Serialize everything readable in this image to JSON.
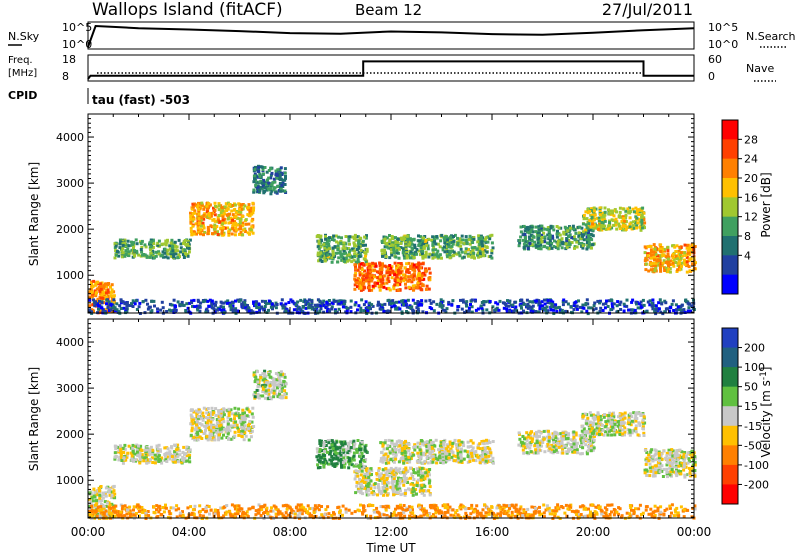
{
  "header": {
    "site": "Wallops Island (fitACF)",
    "beam": "Beam 12",
    "date": "27/Jul/2011"
  },
  "nsky_panel": {
    "left_label": "N.Sky",
    "left_ticks": [
      "10^5",
      "10^0"
    ],
    "right_ticks": [
      "10^5",
      "10^0"
    ],
    "right_label": "N.Search"
  },
  "freq_panel": {
    "left_label_line1": "Freq.",
    "left_label_line2": "[MHz]",
    "left_ticks": [
      "18",
      "8"
    ],
    "right_ticks": [
      "60",
      "0"
    ],
    "right_label": "Nave",
    "cpid_label": "CPID",
    "cpid_value": "tau (fast) -503"
  },
  "power_colorbar": {
    "label": "Power [dB]",
    "ticks": [
      "28",
      "24",
      "20",
      "16",
      "12",
      "8",
      "4"
    ],
    "colors": [
      "#ff0000",
      "#ff4000",
      "#ff8000",
      "#ffc000",
      "#a0c830",
      "#40a060",
      "#207070",
      "#2040a0",
      "#0000ff"
    ]
  },
  "velocity_colorbar": {
    "label": "Velocity [m s^-1]",
    "ticks": [
      "200",
      "100",
      "50",
      "15",
      "-15",
      "-50",
      "-100",
      "-200"
    ],
    "colors": [
      "#2040c0",
      "#206080",
      "#208040",
      "#60c040",
      "#c8c8c8",
      "#ffc000",
      "#ff8000",
      "#ff4000",
      "#ff0000"
    ]
  },
  "chart_data": [
    {
      "type": "line",
      "title": "Wallops Island (fitACF)",
      "xlabel": "",
      "ylabel": "N.Sky",
      "x_hours": [
        0,
        0.3,
        1,
        2,
        4,
        6,
        8,
        10,
        12,
        14,
        16,
        18,
        20,
        22,
        24
      ],
      "series": [
        {
          "values": [
            1,
            100000,
            60000,
            30000,
            15000,
            6000,
            2000,
            1500,
            5000,
            3000,
            1200,
            800,
            2500,
            10000,
            30000
          ]
        }
      ]
    },
    {
      "type": "line",
      "xlabel": "",
      "ylabel": "Freq. [MHz]",
      "ylim": [
        8,
        18
      ],
      "x_hours": [
        0,
        0.1,
        10.9,
        10.9,
        22,
        22,
        24
      ],
      "series": [
        {
          "values": [
            8,
            9.5,
            9.5,
            16,
            16,
            9.5,
            9.5
          ]
        }
      ]
    },
    {
      "type": "heatmap",
      "xlabel": "Time UT",
      "ylabel": "Slant Range [km]",
      "xlim": [
        0,
        24
      ],
      "x_ticks": [
        "00:00",
        "04:00",
        "08:00",
        "12:00",
        "16:00",
        "20:00",
        "00:00"
      ],
      "ylim": [
        180,
        4500
      ],
      "y_ticks": [
        "1000",
        "2000",
        "3000",
        "4000"
      ],
      "quantity": "Power [dB]",
      "regions": [
        {
          "t0": 0,
          "t1": 1,
          "r0": 200,
          "r1": 900,
          "value": 24
        },
        {
          "t0": 1,
          "t1": 4,
          "r0": 1400,
          "r1": 1800,
          "value": 14
        },
        {
          "t0": 4,
          "t1": 6.5,
          "r0": 1900,
          "r1": 2600,
          "value": 22
        },
        {
          "t0": 6.5,
          "t1": 7.8,
          "r0": 2800,
          "r1": 3400,
          "value": 10
        },
        {
          "t0": 9,
          "t1": 11,
          "r0": 1300,
          "r1": 1900,
          "value": 14
        },
        {
          "t0": 10.5,
          "t1": 13.5,
          "r0": 700,
          "r1": 1300,
          "value": 26
        },
        {
          "t0": 11.5,
          "t1": 16,
          "r0": 1400,
          "r1": 1900,
          "value": 14
        },
        {
          "t0": 17,
          "t1": 20,
          "r0": 1600,
          "r1": 2100,
          "value": 12
        },
        {
          "t0": 19.5,
          "t1": 22,
          "r0": 2000,
          "r1": 2500,
          "value": 18
        },
        {
          "t0": 22,
          "t1": 24,
          "r0": 1100,
          "r1": 1700,
          "value": 22
        },
        {
          "t0": 0,
          "t1": 24,
          "r0": 200,
          "r1": 500,
          "value": 6
        }
      ]
    },
    {
      "type": "heatmap",
      "xlabel": "Time UT",
      "ylabel": "Slant Range [km]",
      "xlim": [
        0,
        24
      ],
      "x_ticks": [
        "00:00",
        "04:00",
        "08:00",
        "12:00",
        "16:00",
        "20:00",
        "00:00"
      ],
      "ylim": [
        180,
        4500
      ],
      "y_ticks": [
        "1000",
        "2000",
        "3000",
        "4000"
      ],
      "quantity": "Velocity [m s^-1]",
      "regions": [
        {
          "t0": 0,
          "t1": 1,
          "r0": 200,
          "r1": 900,
          "value": 0
        },
        {
          "t0": 1,
          "t1": 4,
          "r0": 1400,
          "r1": 1800,
          "value": 0
        },
        {
          "t0": 4,
          "t1": 6.5,
          "r0": 1900,
          "r1": 2600,
          "value": 0
        },
        {
          "t0": 6.5,
          "t1": 7.8,
          "r0": 2800,
          "r1": 3400,
          "value": 5
        },
        {
          "t0": 9,
          "t1": 11,
          "r0": 1300,
          "r1": 1900,
          "value": 30
        },
        {
          "t0": 10.5,
          "t1": 13.5,
          "r0": 700,
          "r1": 1300,
          "value": 0
        },
        {
          "t0": 11.5,
          "t1": 16,
          "r0": 1400,
          "r1": 1900,
          "value": 0
        },
        {
          "t0": 17,
          "t1": 20,
          "r0": 1600,
          "r1": 2100,
          "value": 0
        },
        {
          "t0": 19.5,
          "t1": 22,
          "r0": 2000,
          "r1": 2500,
          "value": 0
        },
        {
          "t0": 22,
          "t1": 24,
          "r0": 1100,
          "r1": 1700,
          "value": 0
        },
        {
          "t0": 0,
          "t1": 24,
          "r0": 200,
          "r1": 500,
          "value": -40
        }
      ]
    }
  ]
}
